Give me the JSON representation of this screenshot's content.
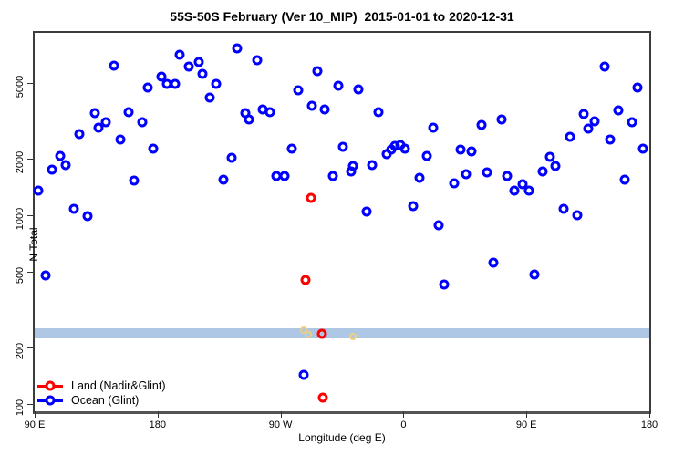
{
  "chart_data": {
    "type": "scatter",
    "title": "55S-50S February (Ver 10_MIP)  2015-01-01 to 2020-12-31",
    "xlabel": "Longitude (deg E)",
    "ylabel": "N Total",
    "x_axis": {
      "scale": "linear",
      "range": [
        90,
        540
      ],
      "note": "longitude measured continuously eastward from 90E; labels wrap 90E-180-90W-0-90E-180",
      "ticks": [
        {
          "pos": 90,
          "label": "90 E"
        },
        {
          "pos": 180,
          "label": "180"
        },
        {
          "pos": 270,
          "label": "90 W"
        },
        {
          "pos": 360,
          "label": "0"
        },
        {
          "pos": 450,
          "label": "90 E"
        },
        {
          "pos": 540,
          "label": "180"
        }
      ]
    },
    "y_axis": {
      "scale": "log",
      "range": [
        91.5,
        9250
      ],
      "ticks": [
        {
          "pos": 100,
          "label": "100"
        },
        {
          "pos": 200,
          "label": "200"
        },
        {
          "pos": 500,
          "label": "500"
        },
        {
          "pos": 1000,
          "label": "1000"
        },
        {
          "pos": 2000,
          "label": "2000"
        },
        {
          "pos": 5000,
          "label": "5000"
        }
      ],
      "grid": false
    },
    "band": {
      "value_from": 223,
      "value_to": 252,
      "color": "#AEC7E4"
    },
    "legend": {
      "position": "bottom-left",
      "entries": [
        {
          "label": "Land (Nadir&Glint)",
          "color": "#FF0000"
        },
        {
          "label": "Ocean (Glint)",
          "color": "#0000FF"
        }
      ]
    },
    "series": [
      {
        "name": "Ocean (Glint)",
        "color": "#0000FF",
        "marker": "open-circle",
        "size": 11,
        "ring": 3,
        "points": [
          [
            148,
            6200
          ],
          [
            196,
            7100
          ],
          [
            203,
            6100
          ],
          [
            210,
            6470
          ],
          [
            213,
            5600
          ],
          [
            238,
            7650
          ],
          [
            183,
            5400
          ],
          [
            187,
            4970
          ],
          [
            193,
            4970
          ],
          [
            173,
            4740
          ],
          [
            223,
            4970
          ],
          [
            218,
            4200
          ],
          [
            134,
            3480
          ],
          [
            137,
            2910
          ],
          [
            142,
            3110
          ],
          [
            159,
            3520
          ],
          [
            169,
            3110
          ],
          [
            123,
            2690
          ],
          [
            153,
            2520
          ],
          [
            177,
            2250
          ],
          [
            109,
            2060
          ],
          [
            113,
            1850
          ],
          [
            103,
            1750
          ],
          [
            234,
            2015
          ],
          [
            253,
            6620
          ],
          [
            297,
            5790
          ],
          [
            283,
            4590
          ],
          [
            312,
            4850
          ],
          [
            327,
            4640
          ],
          [
            293,
            3800
          ],
          [
            302,
            3630
          ],
          [
            244,
            3480
          ],
          [
            247,
            3215
          ],
          [
            257,
            3630
          ],
          [
            262,
            3520
          ],
          [
            342,
            3520
          ],
          [
            382,
            2910
          ],
          [
            278,
            2250
          ],
          [
            316,
            2300
          ],
          [
            348,
            2110
          ],
          [
            351,
            2230
          ],
          [
            354,
            2330
          ],
          [
            358,
            2360
          ],
          [
            361,
            2250
          ],
          [
            377,
            2060
          ],
          [
            323,
            1820
          ],
          [
            337,
            1850
          ],
          [
            507,
            6100
          ],
          [
            531,
            4740
          ],
          [
            417,
            3000
          ],
          [
            432,
            3215
          ],
          [
            492,
            3440
          ],
          [
            500,
            3150
          ],
          [
            495,
            2880
          ],
          [
            517,
            3600
          ],
          [
            527,
            3110
          ],
          [
            482,
            2600
          ],
          [
            511,
            2520
          ],
          [
            535,
            2250
          ],
          [
            402,
            2230
          ],
          [
            410,
            2180
          ],
          [
            467,
            2040
          ],
          [
            471,
            1820
          ],
          [
            93,
            1350
          ],
          [
            163,
            1530
          ],
          [
            228,
            1545
          ],
          [
            119,
            1080
          ],
          [
            129,
            990
          ],
          [
            98,
            480
          ],
          [
            267,
            1615
          ],
          [
            273,
            1615
          ],
          [
            308,
            1615
          ],
          [
            322,
            1700
          ],
          [
            372,
            1580
          ],
          [
            333,
            1045
          ],
          [
            367,
            1120
          ],
          [
            386,
            885
          ],
          [
            397,
            1475
          ],
          [
            406,
            1650
          ],
          [
            421,
            1690
          ],
          [
            436,
            1615
          ],
          [
            441,
            1350
          ],
          [
            447,
            1460
          ],
          [
            452,
            1350
          ],
          [
            462,
            1700
          ],
          [
            522,
            1545
          ],
          [
            477,
            1080
          ],
          [
            487,
            1000
          ],
          [
            390,
            430
          ],
          [
            426,
            560
          ],
          [
            456,
            485
          ],
          [
            287,
            143
          ]
        ]
      },
      {
        "name": "Unlabeled (orange)",
        "color": "#EDCF7E",
        "marker": "open-circle",
        "size": 8,
        "ring": 2,
        "points": [
          [
            287,
            246
          ],
          [
            290,
            233
          ],
          [
            323,
            227
          ]
        ]
      },
      {
        "name": "Land (Nadir&Glint)",
        "color": "#FF0000",
        "marker": "open-circle",
        "size": 11,
        "ring": 3,
        "points": [
          [
            292,
            1235
          ],
          [
            288,
            455
          ],
          [
            300,
            235
          ],
          [
            301,
            108
          ]
        ]
      }
    ]
  }
}
